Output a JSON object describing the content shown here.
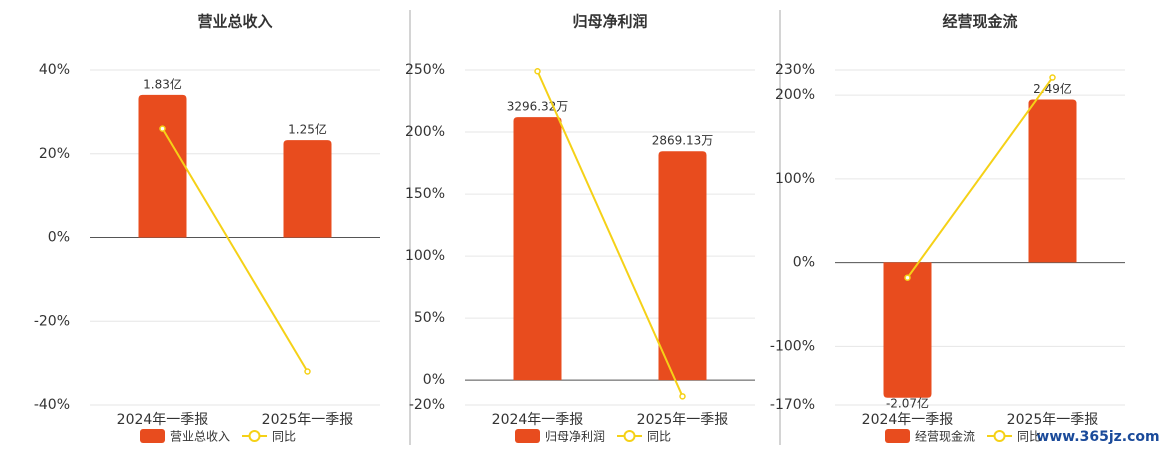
{
  "chart_data": [
    {
      "type": "bar",
      "title": "营业总收入",
      "categories": [
        "2024年一季报",
        "2025年一季报"
      ],
      "ylim": [
        -40,
        40
      ],
      "yticks": [
        {
          "value": -40,
          "label": "-40%"
        },
        {
          "value": -20,
          "label": "-20%"
        },
        {
          "value": 0,
          "label": "0%"
        },
        {
          "value": 20,
          "label": "20%"
        },
        {
          "value": 40,
          "label": "40%"
        }
      ],
      "y2lim": [
        -2.15,
        2.15
      ],
      "grid": true,
      "series": [
        {
          "name": "营业总收入",
          "type": "bar",
          "axis": "y2",
          "color": "#e84c1e",
          "values": [
            1.83,
            1.25
          ],
          "value_labels": [
            "1.83亿",
            "1.25亿"
          ]
        },
        {
          "name": "同比",
          "type": "line",
          "color": "#f5d117",
          "values": [
            26,
            -32
          ]
        }
      ]
    },
    {
      "type": "bar",
      "title": "归母净利润",
      "categories": [
        "2024年一季报",
        "2025年一季报"
      ],
      "ylim": [
        -20,
        250
      ],
      "yticks": [
        {
          "value": -20,
          "label": "-20%"
        },
        {
          "value": 0,
          "label": "0%"
        },
        {
          "value": 50,
          "label": "50%"
        },
        {
          "value": 100,
          "label": "100%"
        },
        {
          "value": 150,
          "label": "150%"
        },
        {
          "value": 200,
          "label": "200%"
        },
        {
          "value": 250,
          "label": "250%"
        }
      ],
      "y2lim": [
        -311,
        3887
      ],
      "grid": true,
      "series": [
        {
          "name": "归母净利润",
          "type": "bar",
          "axis": "y2",
          "color": "#e84c1e",
          "values": [
            3296.32,
            2869.13
          ],
          "value_labels": [
            "3296.32万",
            "2869.13万"
          ]
        },
        {
          "name": "同比",
          "type": "line",
          "color": "#f5d117",
          "values": [
            249,
            -13
          ]
        }
      ]
    },
    {
      "type": "bar",
      "title": "经营现金流",
      "categories": [
        "2024年一季报",
        "2025年一季报"
      ],
      "ylim": [
        -170,
        230
      ],
      "yticks": [
        {
          "value": -170,
          "label": "-170%"
        },
        {
          "value": -100,
          "label": "-100%"
        },
        {
          "value": 0,
          "label": "0%"
        },
        {
          "value": 100,
          "label": "100%"
        },
        {
          "value": 200,
          "label": "200%"
        },
        {
          "value": 230,
          "label": "230%"
        }
      ],
      "y2lim": [
        -2.18,
        2.94
      ],
      "grid": true,
      "series": [
        {
          "name": "经营现金流",
          "type": "bar",
          "axis": "y2",
          "color": "#e84c1e",
          "values": [
            -2.07,
            2.49
          ],
          "value_labels": [
            "-2.07亿",
            "2.49亿"
          ]
        },
        {
          "name": "同比",
          "type": "line",
          "color": "#f5d117",
          "values": [
            -18,
            221
          ]
        }
      ]
    }
  ],
  "watermark": "www.365jz.com"
}
